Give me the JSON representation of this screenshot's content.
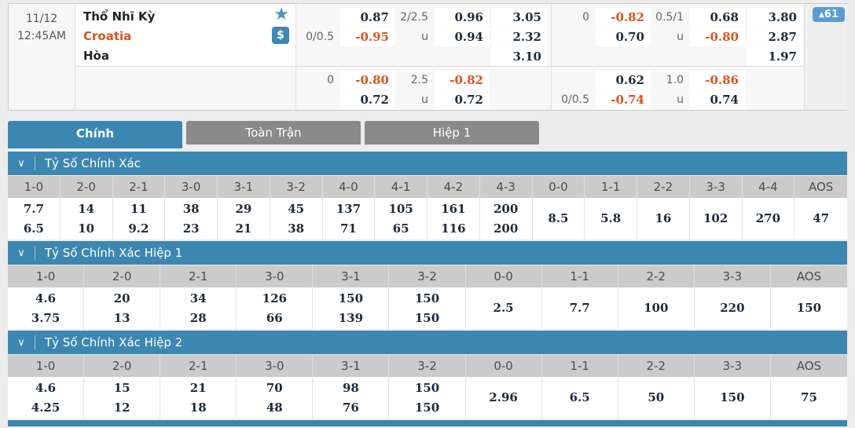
{
  "match": {
    "date": "11/12",
    "time": "12:45AM",
    "teams": {
      "home": "Thổ Nhĩ Kỳ",
      "away": "Croatia",
      "draw": "Hòa"
    },
    "icons": {
      "favorite": "★",
      "money": "$"
    },
    "live_change_badge": "61",
    "odds": {
      "g1u": [
        {
          "hl": "",
          "hv": "0.87",
          "ol": "2/2.5",
          "ov": "0.96",
          "x": "3.05"
        },
        {
          "hl": "0/0.5",
          "hv": "-0.95",
          "ol": "u",
          "ov": "0.94",
          "x": "2.32"
        },
        {
          "x": "3.10"
        }
      ],
      "g2u": [
        {
          "hl": "0",
          "hv": "-0.82",
          "ol": "0.5/1",
          "ov": "0.68",
          "x": "3.80"
        },
        {
          "hl": "",
          "hv": "0.70",
          "ol": "u",
          "ov": "-0.80",
          "x": "2.87"
        },
        {
          "x": "1.97"
        }
      ],
      "g1l": [
        {
          "hl": "0",
          "hv": "-0.80",
          "ol": "2.5",
          "ov": "-0.82"
        },
        {
          "hl": "",
          "hv": "0.72",
          "ol": "u",
          "ov": "0.72"
        }
      ],
      "g2l": [
        {
          "hl": "",
          "hv": "0.62",
          "ol": "1.0",
          "ov": "-0.86"
        },
        {
          "hl": "0/0.5",
          "hv": "-0.74",
          "ol": "u",
          "ov": "0.74"
        }
      ]
    }
  },
  "tabs": [
    {
      "label": "Chính",
      "active": true
    },
    {
      "label": "Toàn Trận",
      "active": false
    },
    {
      "label": "Hiệp 1",
      "active": false
    }
  ],
  "sections": [
    {
      "title": "Tỷ Số Chính Xác",
      "headers": [
        "1-0",
        "2-0",
        "2-1",
        "3-0",
        "3-1",
        "3-2",
        "4-0",
        "4-1",
        "4-2",
        "4-3",
        "0-0",
        "1-1",
        "2-2",
        "3-3",
        "4-4",
        "AOS"
      ],
      "values": [
        [
          "7.7",
          "6.5"
        ],
        [
          "14",
          "10"
        ],
        [
          "11",
          "9.2"
        ],
        [
          "38",
          "23"
        ],
        [
          "29",
          "21"
        ],
        [
          "45",
          "38"
        ],
        [
          "137",
          "71"
        ],
        [
          "105",
          "65"
        ],
        [
          "161",
          "116"
        ],
        [
          "200",
          "200"
        ],
        [
          "8.5"
        ],
        [
          "5.8"
        ],
        [
          "16"
        ],
        [
          "102"
        ],
        [
          "270"
        ],
        [
          "47"
        ]
      ]
    },
    {
      "title": "Tỷ Số Chính Xác Hiệp 1",
      "headers": [
        "1-0",
        "2-0",
        "2-1",
        "3-0",
        "3-1",
        "3-2",
        "0-0",
        "1-1",
        "2-2",
        "3-3",
        "AOS"
      ],
      "values": [
        [
          "4.6",
          "3.75"
        ],
        [
          "20",
          "13"
        ],
        [
          "34",
          "28"
        ],
        [
          "126",
          "66"
        ],
        [
          "150",
          "139"
        ],
        [
          "150",
          "150"
        ],
        [
          "2.5"
        ],
        [
          "7.7"
        ],
        [
          "100"
        ],
        [
          "220"
        ],
        [
          "150"
        ]
      ]
    },
    {
      "title": "Tỷ Số Chính Xác Hiệp 2",
      "headers": [
        "1-0",
        "2-0",
        "2-1",
        "3-0",
        "3-1",
        "3-2",
        "0-0",
        "1-1",
        "2-2",
        "3-3",
        "AOS"
      ],
      "values": [
        [
          "4.6",
          "4.25"
        ],
        [
          "15",
          "12"
        ],
        [
          "21",
          "18"
        ],
        [
          "70",
          "48"
        ],
        [
          "98",
          "76"
        ],
        [
          "150",
          "150"
        ],
        [
          "2.96"
        ],
        [
          "6.5"
        ],
        [
          "50"
        ],
        [
          "150"
        ],
        [
          "75"
        ]
      ]
    }
  ],
  "colors": {
    "primary_blue": "#3c87b2",
    "accent_orange": "#d8541e",
    "tab_gray": "#8a8a8a",
    "badge_blue": "#5b9bd4",
    "table_header_gray": "#cbcbcb"
  }
}
